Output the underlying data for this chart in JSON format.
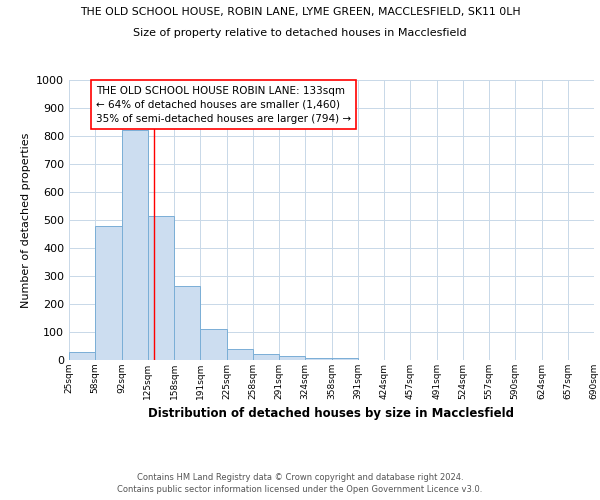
{
  "title1": "THE OLD SCHOOL HOUSE, ROBIN LANE, LYME GREEN, MACCLESFIELD, SK11 0LH",
  "title2": "Size of property relative to detached houses in Macclesfield",
  "xlabel": "Distribution of detached houses by size in Macclesfield",
  "ylabel": "Number of detached properties",
  "bin_edges": [
    25,
    58,
    92,
    125,
    158,
    191,
    225,
    258,
    291,
    324,
    358,
    391,
    424,
    457,
    491,
    524,
    557,
    590,
    624,
    657,
    690
  ],
  "bar_heights": [
    28,
    480,
    820,
    515,
    265,
    112,
    38,
    22,
    13,
    8,
    8,
    0,
    0,
    0,
    0,
    0,
    0,
    0,
    0,
    0
  ],
  "bar_color": "#ccddf0",
  "bar_edge_color": "#7aaed6",
  "red_line_x": 133,
  "ylim": [
    0,
    1000
  ],
  "yticks": [
    0,
    100,
    200,
    300,
    400,
    500,
    600,
    700,
    800,
    900,
    1000
  ],
  "annotation_text": "THE OLD SCHOOL HOUSE ROBIN LANE: 133sqm\n← 64% of detached houses are smaller (1,460)\n35% of semi-detached houses are larger (794) →",
  "footnote_line1": "Contains HM Land Registry data © Crown copyright and database right 2024.",
  "footnote_line2": "Contains public sector information licensed under the Open Government Licence v3.0.",
  "background_color": "#ffffff",
  "grid_color": "#c8d8e8"
}
